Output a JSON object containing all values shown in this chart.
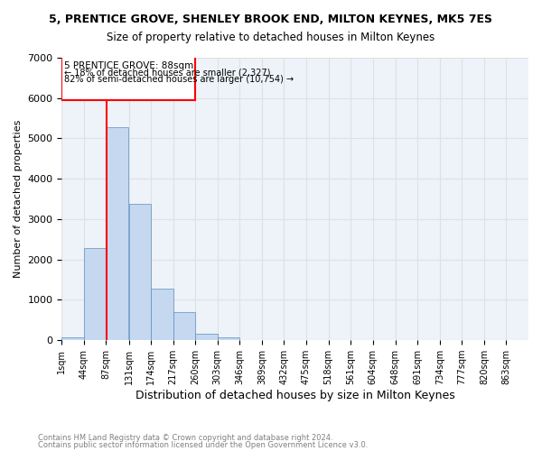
{
  "title1": "5, PRENTICE GROVE, SHENLEY BROOK END, MILTON KEYNES, MK5 7ES",
  "title2": "Size of property relative to detached houses in Milton Keynes",
  "xlabel": "Distribution of detached houses by size in Milton Keynes",
  "ylabel": "Number of detached properties",
  "bar_color": "#c5d8f0",
  "bar_edge_color": "#5a8fc2",
  "annotation_line_color": "red",
  "property_size": 88,
  "annotation_text_line1": "5 PRENTICE GROVE: 88sqm",
  "annotation_text_line2": "← 18% of detached houses are smaller (2,327)",
  "annotation_text_line3": "82% of semi-detached houses are larger (10,754) →",
  "footer1": "Contains HM Land Registry data © Crown copyright and database right 2024.",
  "footer2": "Contains public sector information licensed under the Open Government Licence v3.0.",
  "bin_labels": [
    "1sqm",
    "44sqm",
    "87sqm",
    "131sqm",
    "174sqm",
    "217sqm",
    "260sqm",
    "303sqm",
    "346sqm",
    "389sqm",
    "432sqm",
    "475sqm",
    "518sqm",
    "561sqm",
    "604sqm",
    "648sqm",
    "691sqm",
    "734sqm",
    "777sqm",
    "820sqm",
    "863sqm"
  ],
  "bin_edges": [
    1,
    44,
    87,
    131,
    174,
    217,
    260,
    303,
    346,
    389,
    432,
    475,
    518,
    561,
    604,
    648,
    691,
    734,
    777,
    820,
    863
  ],
  "bar_heights": [
    80,
    2280,
    5280,
    3380,
    1280,
    700,
    170,
    75,
    5,
    0,
    0,
    0,
    0,
    0,
    0,
    0,
    0,
    0,
    0,
    0
  ],
  "ylim": [
    0,
    7000
  ],
  "yticks": [
    0,
    1000,
    2000,
    3000,
    4000,
    5000,
    6000,
    7000
  ],
  "grid_color": "#e0e0e0",
  "background_color": "#eef3f9"
}
